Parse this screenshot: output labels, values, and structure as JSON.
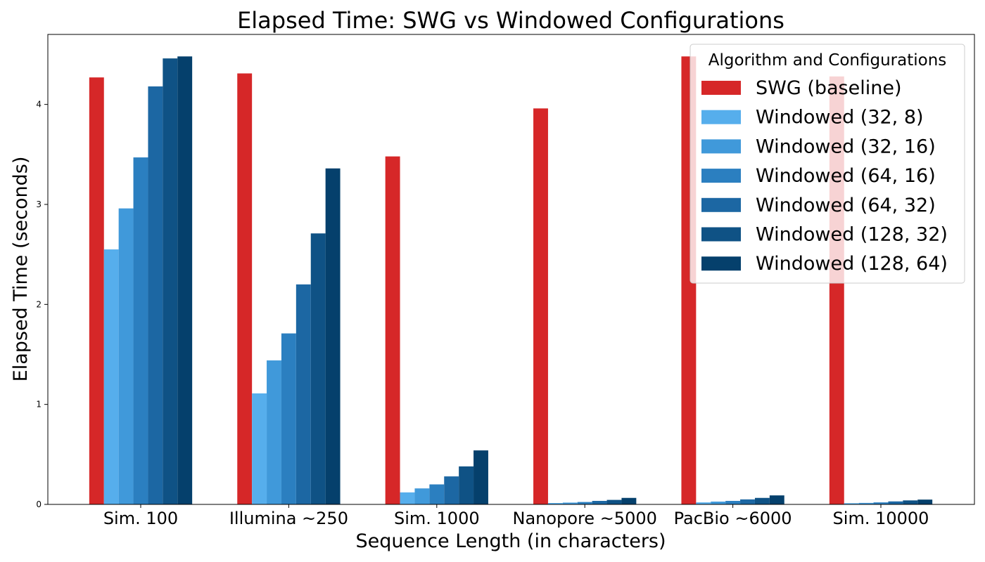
{
  "chart_data": {
    "type": "bar",
    "title": "Elapsed Time: SWG vs Windowed Configurations",
    "xlabel": "Sequence Length (in characters)",
    "ylabel": "Elapsed Time (seconds)",
    "ylim": [
      0,
      4.7
    ],
    "yticks": [
      "0",
      "1",
      "2",
      "3",
      "4"
    ],
    "grid": false,
    "legend_title": "Algorithm and Configurations",
    "legend_position": "top-right",
    "categories": [
      "Sim. 100",
      "Illumina ~250",
      "Sim. 1000",
      "Nanopore ~5000",
      "PacBio ~6000",
      "Sim. 10000"
    ],
    "series": [
      {
        "name": "SWG (baseline)",
        "color": "#d62728",
        "values": [
          4.27,
          4.31,
          3.48,
          3.96,
          4.48,
          4.28
        ]
      },
      {
        "name": "Windowed (32, 8)",
        "color": "#56aeec",
        "values": [
          2.55,
          1.11,
          0.12,
          0.014,
          0.02,
          0.012
        ]
      },
      {
        "name": "Windowed (32, 16)",
        "color": "#4099da",
        "values": [
          2.96,
          1.44,
          0.16,
          0.018,
          0.028,
          0.015
        ]
      },
      {
        "name": "Windowed (64, 16)",
        "color": "#2b7fc0",
        "values": [
          3.47,
          1.71,
          0.2,
          0.024,
          0.035,
          0.02
        ]
      },
      {
        "name": "Windowed (64, 32)",
        "color": "#1c67a3",
        "values": [
          4.18,
          2.2,
          0.28,
          0.035,
          0.05,
          0.03
        ]
      },
      {
        "name": "Windowed (128, 32)",
        "color": "#0f5285",
        "values": [
          4.46,
          2.71,
          0.38,
          0.045,
          0.065,
          0.04
        ]
      },
      {
        "name": "Windowed (128, 64)",
        "color": "#05406c",
        "values": [
          4.48,
          3.36,
          0.54,
          0.065,
          0.09,
          0.048
        ]
      }
    ]
  }
}
